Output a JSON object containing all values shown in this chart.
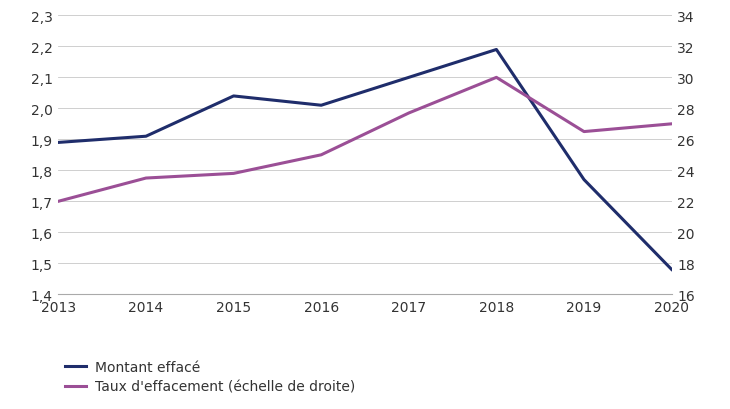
{
  "years": [
    2013,
    2014,
    2015,
    2016,
    2017,
    2018,
    2019,
    2020
  ],
  "montant": [
    1.89,
    1.91,
    2.04,
    2.01,
    2.1,
    2.19,
    1.77,
    1.48
  ],
  "taux": [
    22.0,
    23.5,
    23.8,
    25.0,
    27.7,
    30.0,
    26.5,
    27.0
  ],
  "montant_color": "#1f2d6b",
  "taux_color": "#9b4f96",
  "left_ylim": [
    1.4,
    2.3
  ],
  "left_yticks": [
    1.4,
    1.5,
    1.6,
    1.7,
    1.8,
    1.9,
    2.0,
    2.1,
    2.2,
    2.3
  ],
  "right_ylim": [
    16,
    34
  ],
  "right_yticks": [
    16,
    18,
    20,
    22,
    24,
    26,
    28,
    30,
    32,
    34
  ],
  "montant_label": "Montant effacé",
  "taux_label": "Taux d'effacement (échelle de droite)",
  "line_width": 2.2,
  "grid_color": "#c8c8c8",
  "background_color": "#ffffff"
}
